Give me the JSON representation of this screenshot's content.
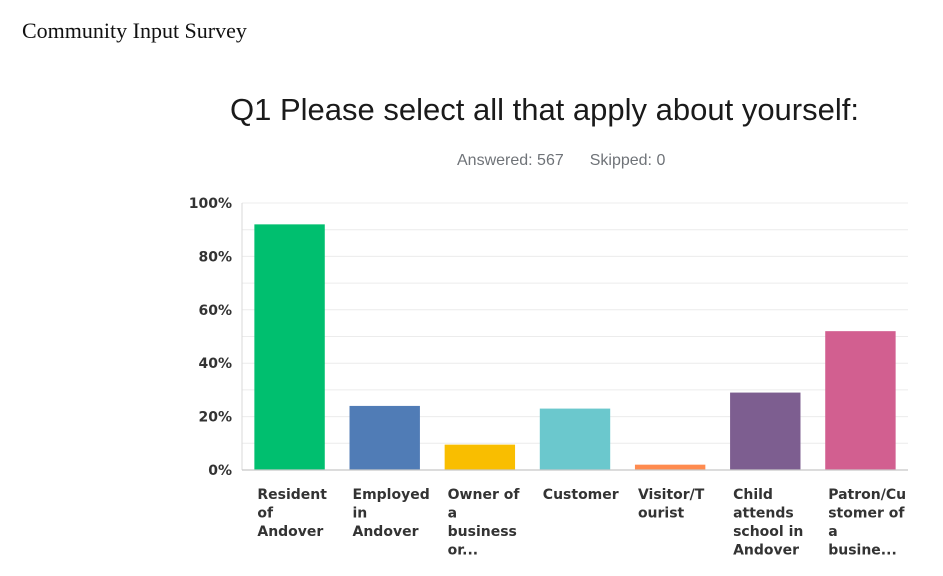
{
  "document": {
    "header": "Community Input Survey"
  },
  "survey": {
    "question_title": "Q1 Please select all that apply about yourself:",
    "answered": "Answered: 567",
    "skipped": "Skipped: 0"
  },
  "chart_data": {
    "type": "bar",
    "title": "Q1 Please select all that apply about yourself:",
    "xlabel": "",
    "ylabel": "",
    "ylim": [
      0,
      100
    ],
    "y_ticks": [
      "0%",
      "20%",
      "40%",
      "60%",
      "80%",
      "100%"
    ],
    "y_tick_values": [
      0,
      20,
      40,
      60,
      80,
      100
    ],
    "grid": true,
    "categories": [
      "Resident of Andover",
      "Employed in Andover",
      "Owner of a business or...",
      "Customer",
      "Visitor/Tourist",
      "Child attends school in Andover",
      "Patron/Customer of a busine..."
    ],
    "category_label_lines": [
      [
        "Resident",
        "of",
        "Andover"
      ],
      [
        "Employed",
        "in",
        "Andover"
      ],
      [
        "Owner of",
        "a",
        "business",
        "or..."
      ],
      [
        "Customer"
      ],
      [
        "Visitor/T",
        "ourist"
      ],
      [
        "Child",
        "attends",
        "school in",
        "Andover"
      ],
      [
        "Patron/Cu",
        "stomer of",
        "a",
        "busine..."
      ]
    ],
    "values": [
      92,
      24,
      9.5,
      23,
      2,
      29,
      52
    ],
    "colors": [
      "#00bf6f",
      "#507cb6",
      "#f9be00",
      "#6bc8cd",
      "#ff8b4f",
      "#7d5e90",
      "#d25f90"
    ]
  }
}
